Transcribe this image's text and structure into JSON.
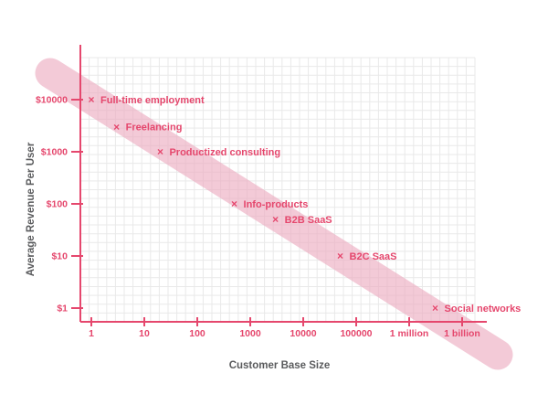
{
  "chart_data": {
    "type": "scatter",
    "title": "",
    "xlabel": "Customer Base Size",
    "ylabel": "Average Revenue Per User",
    "x_scale": "log",
    "y_scale": "log",
    "xlim": [
      1,
      1000000000
    ],
    "ylim": [
      1,
      10000
    ],
    "grid": true,
    "marker_glyph": "×",
    "x_ticks": [
      {
        "label": "1",
        "value": 1
      },
      {
        "label": "10",
        "value": 10
      },
      {
        "label": "100",
        "value": 100
      },
      {
        "label": "1000",
        "value": 1000
      },
      {
        "label": "10000",
        "value": 10000
      },
      {
        "label": "100000",
        "value": 100000
      },
      {
        "label": "1 million",
        "value": 1000000
      },
      {
        "label": "1 billion",
        "value": 1000000000
      }
    ],
    "y_ticks": [
      {
        "label": "$1",
        "value": 1
      },
      {
        "label": "$10",
        "value": 10
      },
      {
        "label": "$100",
        "value": 100
      },
      {
        "label": "$1000",
        "value": 1000
      },
      {
        "label": "$10000",
        "value": 10000
      }
    ],
    "points": [
      {
        "label": "Full-time employment",
        "x": 1,
        "y": 10000
      },
      {
        "label": "Freelancing",
        "x": 3,
        "y": 3000
      },
      {
        "label": "Productized consulting",
        "x": 20,
        "y": 1000
      },
      {
        "label": "Info-products",
        "x": 500,
        "y": 100
      },
      {
        "label": "B2B SaaS",
        "x": 3000,
        "y": 50
      },
      {
        "label": "B2C SaaS",
        "x": 50000,
        "y": 10
      },
      {
        "label": "Social networks",
        "x": 30000000,
        "y": 1
      }
    ],
    "trend_band": {
      "present": true,
      "direction": "diagonal-descending"
    }
  },
  "colors": {
    "accent": "#e5476d",
    "band": "#eba9bf",
    "grid": "#e9e9e9",
    "axis_label": "#5a5b5d",
    "background": "#ffffff"
  }
}
